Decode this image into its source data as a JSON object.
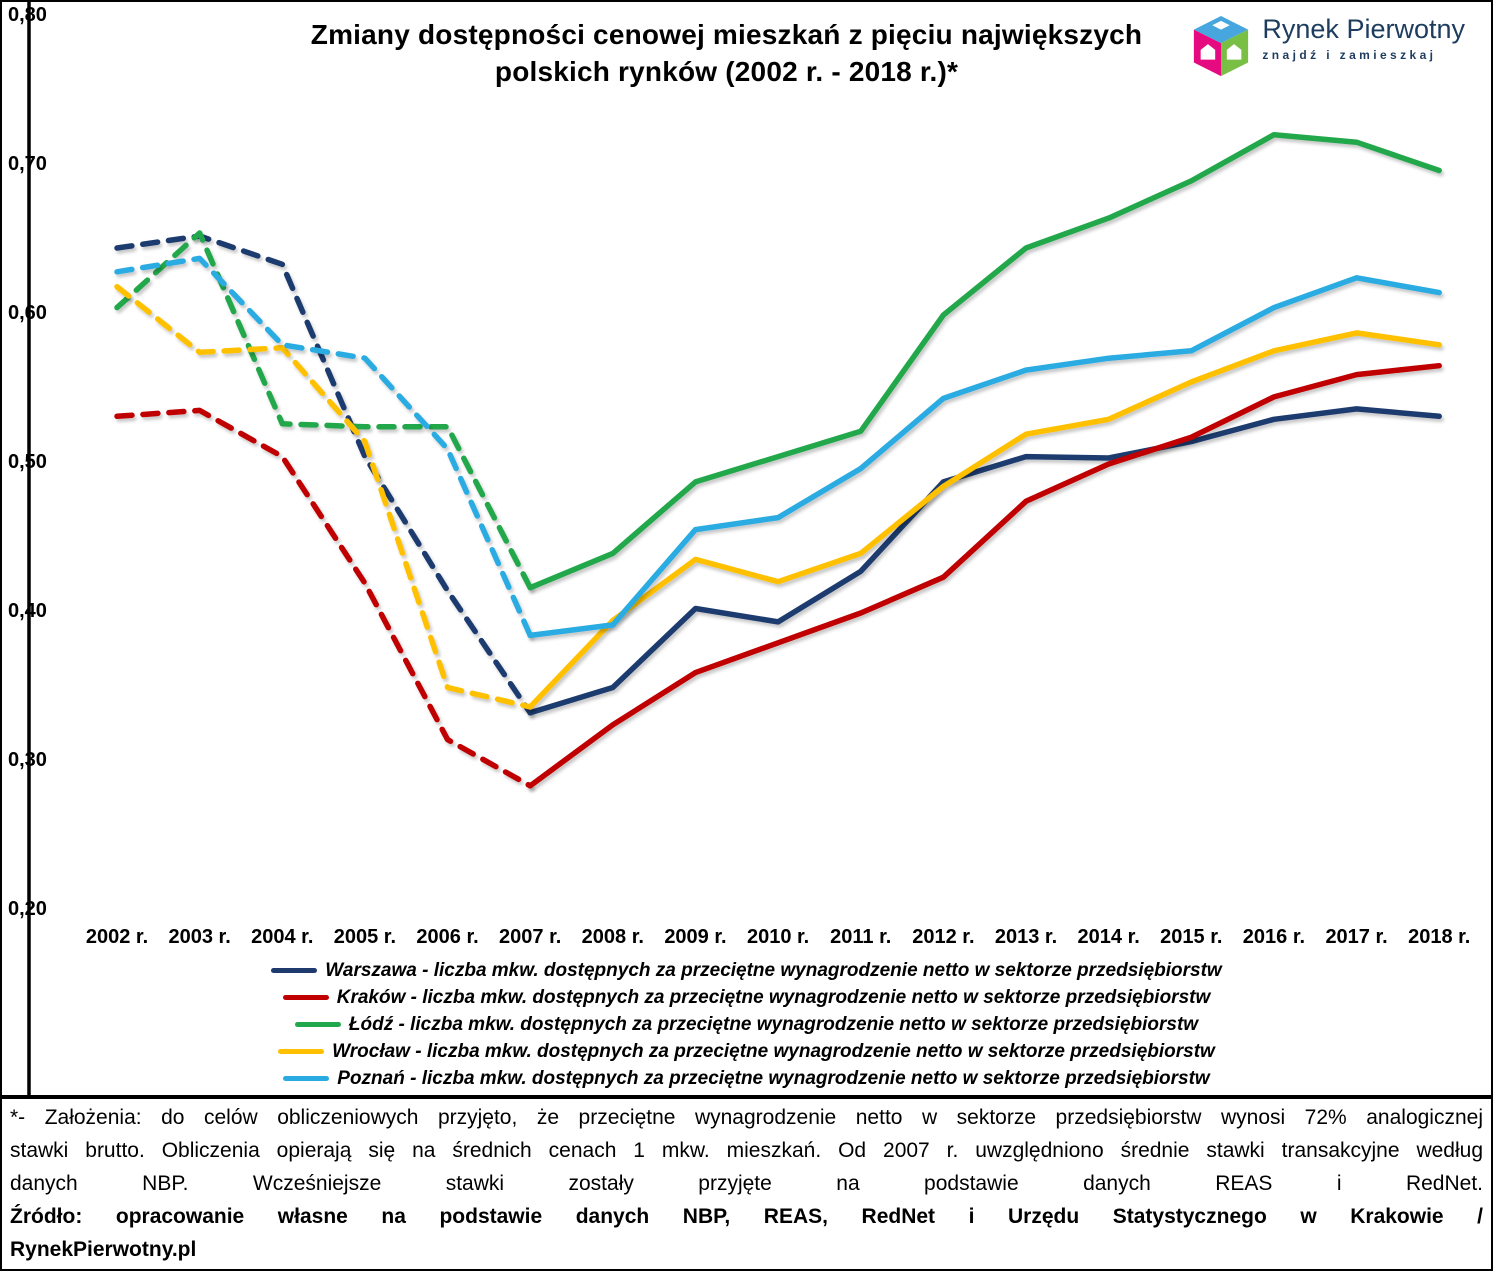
{
  "title": {
    "line1": "Zmiany dostępności cenowej mieszkań z pięciu największych",
    "line2": "polskich rynków  (2002 r. - 2018 r.)*"
  },
  "logo": {
    "name": "Rynek Pierwotny",
    "tagline": "znajdź i zamieszkaj",
    "text_color": "#1d3c5e",
    "cube_colors": {
      "top": "#47a6de",
      "left": "#e50a80",
      "right": "#79bf43"
    }
  },
  "chart_data": {
    "type": "line",
    "x": [
      "2002 r.",
      "2003 r.",
      "2004 r.",
      "2005 r.",
      "2006 r.",
      "2007 r.",
      "2008 r.",
      "2009 r.",
      "2010 r.",
      "2011 r.",
      "2012 r.",
      "2013 r.",
      "2014 r.",
      "2015 r.",
      "2016 r.",
      "2017 r.",
      "2018 r."
    ],
    "y_axis": {
      "tick_labels": [
        "0,80",
        "0,70",
        "0,60",
        "0,50",
        "0,40",
        "0,30",
        "0,20"
      ],
      "tick_values": [
        0.8,
        0.7,
        0.6,
        0.5,
        0.4,
        0.3,
        0.2
      ]
    },
    "ylim": [
      0.2,
      0.8
    ],
    "grid": false,
    "legend_position": "bottom",
    "dashed_until_index": 5,
    "dashed_period": "2002-2007",
    "solid_period": "2007-2018",
    "series": [
      {
        "name": "Warszawa",
        "color": "#1f3a6e",
        "legend_label": "Warszawa - liczba mkw. dostępnych za przeciętne wynagrodzenie netto w sektorze przedsiębiorstw",
        "values": [
          0.645,
          0.653,
          0.634,
          0.505,
          0.415,
          0.333,
          0.35,
          0.403,
          0.394,
          0.428,
          0.488,
          0.505,
          0.504,
          0.515,
          0.53,
          0.537,
          0.532
        ]
      },
      {
        "name": "Kraków",
        "color": "#c00000",
        "legend_label": "Kraków - liczba mkw. dostępnych za przeciętne wynagrodzenie netto w sektorze przedsiębiorstw",
        "values": [
          0.532,
          0.536,
          0.505,
          0.42,
          0.315,
          0.284,
          0.325,
          0.36,
          0.38,
          0.4,
          0.424,
          0.475,
          0.5,
          0.518,
          0.545,
          0.56,
          0.566
        ]
      },
      {
        "name": "Łódź",
        "color": "#22a84c",
        "legend_label": "Łódź - liczba mkw. dostępnych za przeciętne wynagrodzenie netto w sektorze przedsiębiorstw",
        "values": [
          0.605,
          0.655,
          0.527,
          0.525,
          0.525,
          0.417,
          0.44,
          0.488,
          0.505,
          0.522,
          0.6,
          0.645,
          0.665,
          0.69,
          0.721,
          0.716,
          0.697
        ]
      },
      {
        "name": "Wrocław",
        "color": "#ffc000",
        "legend_label": "Wrocław - liczba mkw. dostępnych za przeciętne wynagrodzenie netto w sektorze przedsiębiorstw",
        "values": [
          0.619,
          0.575,
          0.578,
          0.515,
          0.35,
          0.337,
          0.395,
          0.436,
          0.421,
          0.44,
          0.485,
          0.52,
          0.53,
          0.555,
          0.576,
          0.588,
          0.58
        ]
      },
      {
        "name": "Poznań",
        "color": "#29abe2",
        "legend_label": "Poznań - liczba mkw. dostępnych za przeciętne wynagrodzenie netto w sektorze przedsiębiorstw",
        "values": [
          0.629,
          0.638,
          0.58,
          0.571,
          0.51,
          0.385,
          0.392,
          0.456,
          0.464,
          0.497,
          0.544,
          0.563,
          0.571,
          0.576,
          0.605,
          0.625,
          0.615
        ]
      }
    ]
  },
  "footnote": {
    "line1": "*- Założenia: do celów obliczeniowych przyjęto, że przeciętne wynagrodzenie netto w sektorze przedsiębiorstw wynosi 72% analogicznej",
    "line2": "stawki brutto. Obliczenia opierają się na średnich cenach 1 mkw. mieszkań. Od 2007 r. uwzględniono średnie stawki transakcyjne według",
    "line3": "danych NBP. Wcześniejsze stawki zostały przyjęte na podstawie danych REAS i RedNet.",
    "source_line1": "Źródło: opracowanie własne na podstawie danych NBP, REAS, RedNet i Urzędu Statystycznego w Krakowie /",
    "source_line2": "RynekPierwotny.pl"
  }
}
